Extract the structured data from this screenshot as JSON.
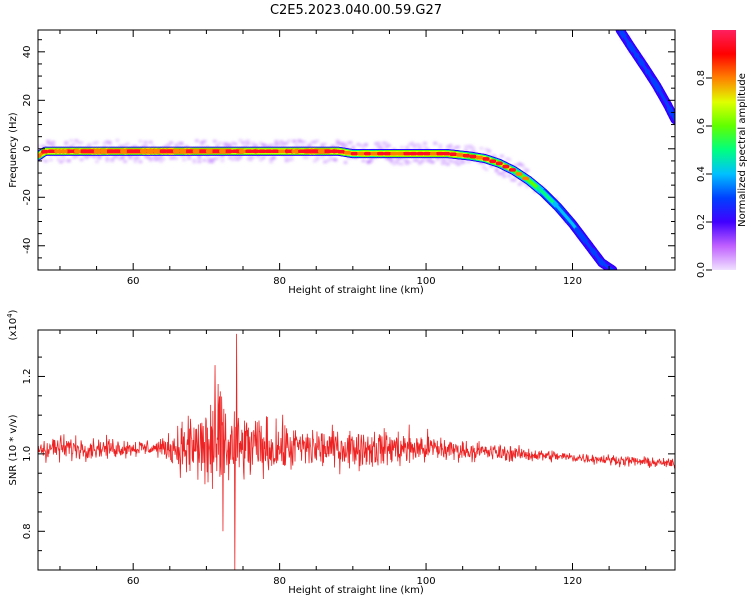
{
  "title": "C2E5.2023.040.00.59.G27",
  "chart_data": [
    {
      "type": "heatmap",
      "xlabel": "Height of straight line (km)",
      "ylabel": "Frequency (Hz)",
      "xlim": [
        47,
        134
      ],
      "ylim": [
        -50,
        49
      ],
      "x_ticks": [
        60,
        80,
        100,
        120
      ],
      "y_ticks": [
        40,
        20,
        0,
        -20,
        -40
      ],
      "colorbar": {
        "label": "Normalized spectral amplitude",
        "range": [
          0,
          1
        ],
        "ticks": [
          "0.0",
          "0.2",
          "0.4",
          "0.6",
          "0.8"
        ],
        "colors": [
          "#f0e0ff",
          "#c060ff",
          "#4000ff",
          "#0040ff",
          "#00c0ff",
          "#00ff80",
          "#60ff00",
          "#e0ff00",
          "#ff8000",
          "#ff0000",
          "#ff2060"
        ]
      },
      "tracks": [
        {
          "name": "",
          "points": [
            [
              47,
              -3
            ],
            [
              48,
              -1
            ],
            [
              55,
              -1
            ],
            [
              65,
              -1
            ],
            [
              75,
              -1
            ],
            [
              80,
              -1
            ],
            [
              85,
              -1
            ],
            [
              88,
              -1
            ],
            [
              90,
              -2
            ],
            [
              95,
              -2
            ],
            [
              100,
              -2
            ],
            [
              103,
              -2
            ],
            [
              106,
              -3
            ],
            [
              108,
              -4
            ],
            [
              110,
              -6
            ],
            [
              112,
              -9
            ],
            [
              114,
              -13
            ],
            [
              116,
              -18
            ],
            [
              118,
              -24
            ],
            [
              120,
              -31
            ],
            [
              122,
              -39
            ],
            [
              124,
              -47
            ],
            [
              125.5,
              -50
            ]
          ],
          "amplitude": [
            0.75,
            0.85,
            0.95,
            0.95,
            0.9,
            0.85,
            0.95,
            0.9,
            0.8,
            0.85,
            0.85,
            0.85,
            0.75,
            0.8,
            0.7,
            0.65,
            0.6,
            0.5,
            0.4,
            0.35,
            0.3,
            0.3,
            0.3
          ]
        },
        {
          "name": "",
          "points": [
            [
              126.5,
              49
            ],
            [
              128,
              42
            ],
            [
              130,
              33
            ],
            [
              131.5,
              26
            ],
            [
              133,
              18
            ],
            [
              134,
              12
            ]
          ],
          "amplitude": [
            0.3,
            0.3,
            0.3,
            0.3,
            0.3,
            0.3
          ]
        }
      ]
    },
    {
      "type": "line",
      "xlabel": "Height of straight line (km)",
      "ylabel": "SNR (10 * v/v)",
      "multiplier_label": "(x10",
      "multiplier_exp": "4",
      "multiplier_close": ")",
      "xlim": [
        47,
        134
      ],
      "ylim": [
        0.7,
        1.32
      ],
      "x_ticks": [
        60,
        80,
        100,
        120
      ],
      "y_ticks": [
        1.2,
        1.0,
        0.8
      ],
      "y_tick_labels": [
        "1.2",
        "1.0",
        "0.8"
      ],
      "color": "#ee2222",
      "envelope": {
        "x": [
          47,
          50,
          55,
          60,
          64,
          66,
          68,
          70,
          72,
          74,
          76,
          78,
          80,
          85,
          90,
          95,
          100,
          104,
          110,
          115,
          120,
          125,
          130,
          134
        ],
        "amplitude": [
          0.035,
          0.03,
          0.025,
          0.02,
          0.02,
          0.05,
          0.09,
          0.13,
          0.15,
          0.12,
          0.08,
          0.07,
          0.06,
          0.05,
          0.045,
          0.045,
          0.04,
          0.025,
          0.02,
          0.015,
          0.012,
          0.012,
          0.012,
          0.01
        ]
      },
      "baseline": 1.015,
      "spikes": [
        {
          "x": 74.1,
          "y": 1.31
        },
        {
          "x": 73.9,
          "y": 0.7
        }
      ]
    }
  ]
}
